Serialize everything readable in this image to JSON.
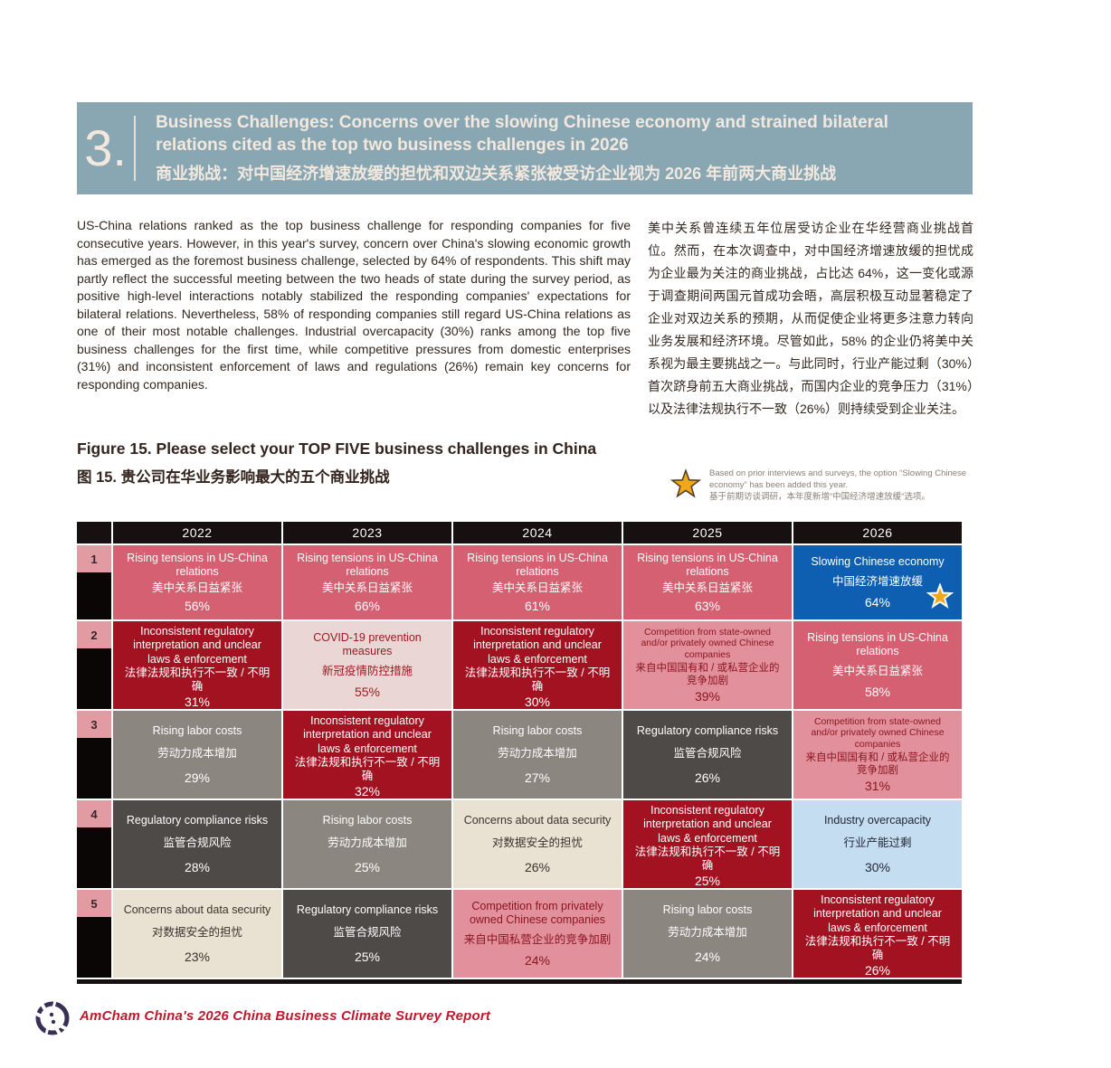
{
  "header": {
    "section_number": "3.",
    "title_en": "Business Challenges: Concerns over the slowing Chinese economy and strained bilateral relations cited as the top two business challenges in 2026",
    "title_zh": "商业挑战：对中国经济增速放缓的担忧和双边关系紧张被受访企业视为 2026 年前两大商业挑战"
  },
  "body": {
    "paragraph_en": "US-China relations ranked as the top business challenge for responding companies for five consecutive years. However, in this year's survey, concern over China's slowing economic growth has emerged as the foremost business challenge, selected by 64% of respondents. This shift may partly reflect the successful meeting between the two heads of state during the survey period, as positive high-level interactions notably stabilized the responding companies' expectations for bilateral relations. Nevertheless, 58% of responding companies still regard US-China relations as one of their most notable challenges. Industrial overcapacity (30%) ranks among the top five business challenges for the first time, while competitive pressures from domestic enterprises (31%) and inconsistent enforcement of laws and regulations (26%) remain key concerns for responding companies.",
    "paragraph_zh": "美中关系曾连续五年位居受访企业在华经营商业挑战首位。然而，在本次调查中，对中国经济增速放缓的担忧成为企业最为关注的商业挑战，占比达 64%，这一变化或源于调查期间两国元首成功会晤，高层积极互动显著稳定了企业对双边关系的预期，从而促使企业将更多注意力转向业务发展和经济环境。尽管如此，58% 的企业仍将美中关系视为最主要挑战之一。与此同时，行业产能过剩（30%）首次跻身前五大商业挑战，而国内企业的竞争压力（31%）以及法律法规执行不一致（26%）则持续受到企业关注。"
  },
  "figure": {
    "title_en": "Figure 15. Please select your TOP FIVE business challenges in China",
    "title_zh": "图 15. 贵公司在华业务影响最大的五个商业挑战",
    "note_en": "Based on prior interviews and surveys, the option “Slowing Chinese economy” has been added this year.",
    "note_zh": "基于前期访谈调研，本年度新增“中国经济增速放缓”选项。"
  },
  "chart_data": {
    "type": "table",
    "title": "Figure 15. Please select your TOP FIVE business challenges in China",
    "columns": [
      "2022",
      "2023",
      "2024",
      "2025",
      "2026"
    ],
    "ranks": [
      "1",
      "2",
      "3",
      "4",
      "5"
    ],
    "palette": {
      "rose": {
        "bg": "#D56071",
        "fg": "#FFFFFF"
      },
      "darkred": {
        "bg": "#A31220",
        "fg": "#FFFFFF"
      },
      "lightpink": {
        "bg": "#EAD6D4",
        "fg": "#9C1B23"
      },
      "medpink": {
        "bg": "#E2919C",
        "fg": "#8C1520"
      },
      "gray": {
        "bg": "#8C8680",
        "fg": "#FFFFFF"
      },
      "darkgray": {
        "bg": "#4E4A47",
        "fg": "#FFFFFF"
      },
      "cream": {
        "bg": "#E9E1D2",
        "fg": "#3B332C"
      },
      "blue": {
        "bg": "#0E5FB2",
        "fg": "#FFFFFF"
      },
      "lightblue": {
        "bg": "#C4DDF0",
        "fg": "#232838"
      }
    },
    "star_color": "#F2A71B",
    "rows": [
      [
        {
          "en": "Rising tensions in US-China relations",
          "zh": "美中关系日益紧张",
          "value": "56%",
          "style": "rose"
        },
        {
          "en": "Rising tensions in US-China relations",
          "zh": "美中关系日益紧张",
          "value": "66%",
          "style": "rose"
        },
        {
          "en": "Rising tensions in US-China relations",
          "zh": "美中关系日益紧张",
          "value": "61%",
          "style": "rose"
        },
        {
          "en": "Rising tensions in US-China relations",
          "zh": "美中关系日益紧张",
          "value": "63%",
          "style": "rose"
        },
        {
          "en": "Slowing Chinese economy",
          "zh": "中国经济增速放缓",
          "value": "64%",
          "style": "blue",
          "starred": true
        }
      ],
      [
        {
          "en": "Inconsistent regulatory interpretation and unclear laws & enforcement",
          "zh": "法律法规和执行不一致 / 不明确",
          "value": "31%",
          "style": "darkred"
        },
        {
          "en": "COVID-19 prevention measures",
          "zh": "新冠疫情防控措施",
          "value": "55%",
          "style": "lightpink"
        },
        {
          "en": "Inconsistent regulatory interpretation and unclear laws & enforcement",
          "zh": "法律法规和执行不一致 / 不明确",
          "value": "30%",
          "style": "darkred"
        },
        {
          "en": "Competition from state-owned and/or privately owned Chinese companies",
          "zh": "来自中国国有和 / 或私营企业的竞争加剧",
          "value": "39%",
          "style": "medpink",
          "small": true
        },
        {
          "en": "Rising tensions in US-China relations",
          "zh": "美中关系日益紧张",
          "value": "58%",
          "style": "rose"
        }
      ],
      [
        {
          "en": "Rising labor costs",
          "zh": "劳动力成本增加",
          "value": "29%",
          "style": "gray"
        },
        {
          "en": "Inconsistent regulatory interpretation and unclear laws & enforcement",
          "zh": "法律法规和执行不一致 / 不明确",
          "value": "32%",
          "style": "darkred"
        },
        {
          "en": "Rising labor costs",
          "zh": "劳动力成本增加",
          "value": "27%",
          "style": "gray"
        },
        {
          "en": "Regulatory compliance risks",
          "zh": "监管合规风险",
          "value": "26%",
          "style": "darkgray"
        },
        {
          "en": "Competition from state-owned and/or privately owned Chinese companies",
          "zh": "来自中国国有和 / 或私营企业的竞争加剧",
          "value": "31%",
          "style": "medpink",
          "small": true
        }
      ],
      [
        {
          "en": "Regulatory compliance risks",
          "zh": "监管合规风险",
          "value": "28%",
          "style": "darkgray"
        },
        {
          "en": "Rising labor costs",
          "zh": "劳动力成本增加",
          "value": "25%",
          "style": "gray"
        },
        {
          "en": "Concerns about data security",
          "zh": "对数据安全的担忧",
          "value": "26%",
          "style": "cream"
        },
        {
          "en": "Inconsistent regulatory interpretation and unclear laws & enforcement",
          "zh": "法律法规和执行不一致 / 不明确",
          "value": "25%",
          "style": "darkred"
        },
        {
          "en": "Industry overcapacity",
          "zh": "行业产能过剩",
          "value": "30%",
          "style": "lightblue"
        }
      ],
      [
        {
          "en": "Concerns about data security",
          "zh": "对数据安全的担忧",
          "value": "23%",
          "style": "cream"
        },
        {
          "en": "Regulatory compliance risks",
          "zh": "监管合规风险",
          "value": "25%",
          "style": "darkgray"
        },
        {
          "en": "Competition from privately owned Chinese companies",
          "zh": "来自中国私营企业的竞争加剧",
          "value": "24%",
          "style": "medpink"
        },
        {
          "en": "Rising labor costs",
          "zh": "劳动力成本增加",
          "value": "24%",
          "style": "gray"
        },
        {
          "en": "Inconsistent regulatory interpretation and unclear laws & enforcement",
          "zh": "法律法规和执行不一致 / 不明确",
          "value": "26%",
          "style": "darkred"
        }
      ]
    ]
  },
  "footer": {
    "report_title": "AmCham China's 2026 China Business Climate Survey Report"
  },
  "colors": {
    "band_background": "#88A7B3",
    "band_text": "#F3E8DE",
    "footer_red": "#C0182C",
    "table_header_black": "#161010",
    "rank_pink": "#E39BA3"
  }
}
